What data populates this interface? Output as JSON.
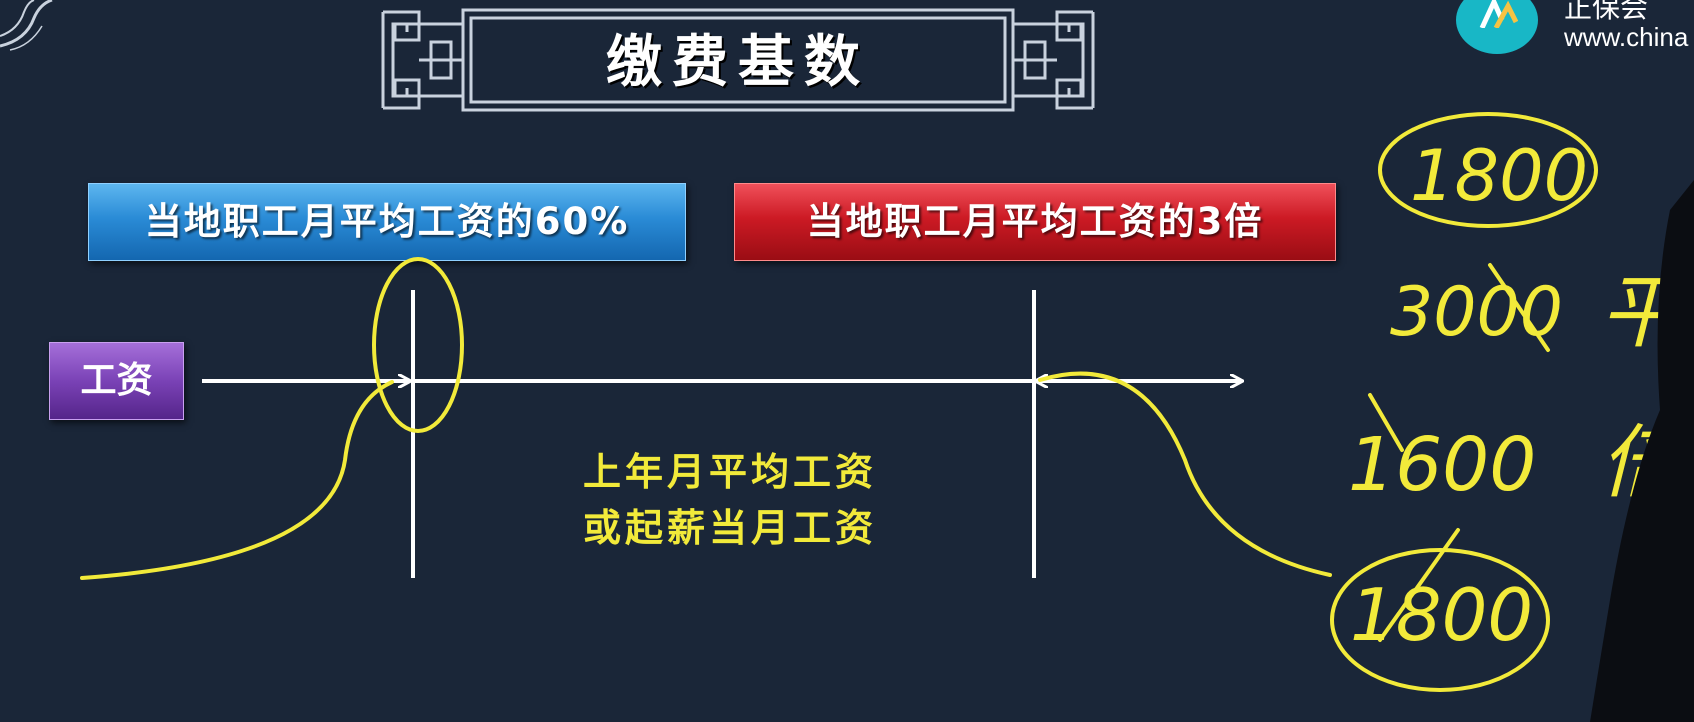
{
  "slide": {
    "title": "缴费基数",
    "lower_bound_label": "当地职工月平均工资的60%",
    "upper_bound_label": "当地职工月平均工资的3倍",
    "wage_label": "工资",
    "base_text_line1": "上年月平均工资",
    "base_text_line2": "或起薪当月工资"
  },
  "logo": {
    "name_partial": "正保会",
    "url_partial": "www.china"
  },
  "handwriting": {
    "note_1": "1800",
    "note_2": "3000",
    "note_3": "平",
    "note_4": "1600",
    "note_5": "倍",
    "note_6": "1800"
  },
  "colors": {
    "background": "#1a2638",
    "ink": "#f2ea3a",
    "banner_blue": "#2a8bd6",
    "banner_red": "#cc1a24",
    "label_purple": "#7a42b6"
  }
}
